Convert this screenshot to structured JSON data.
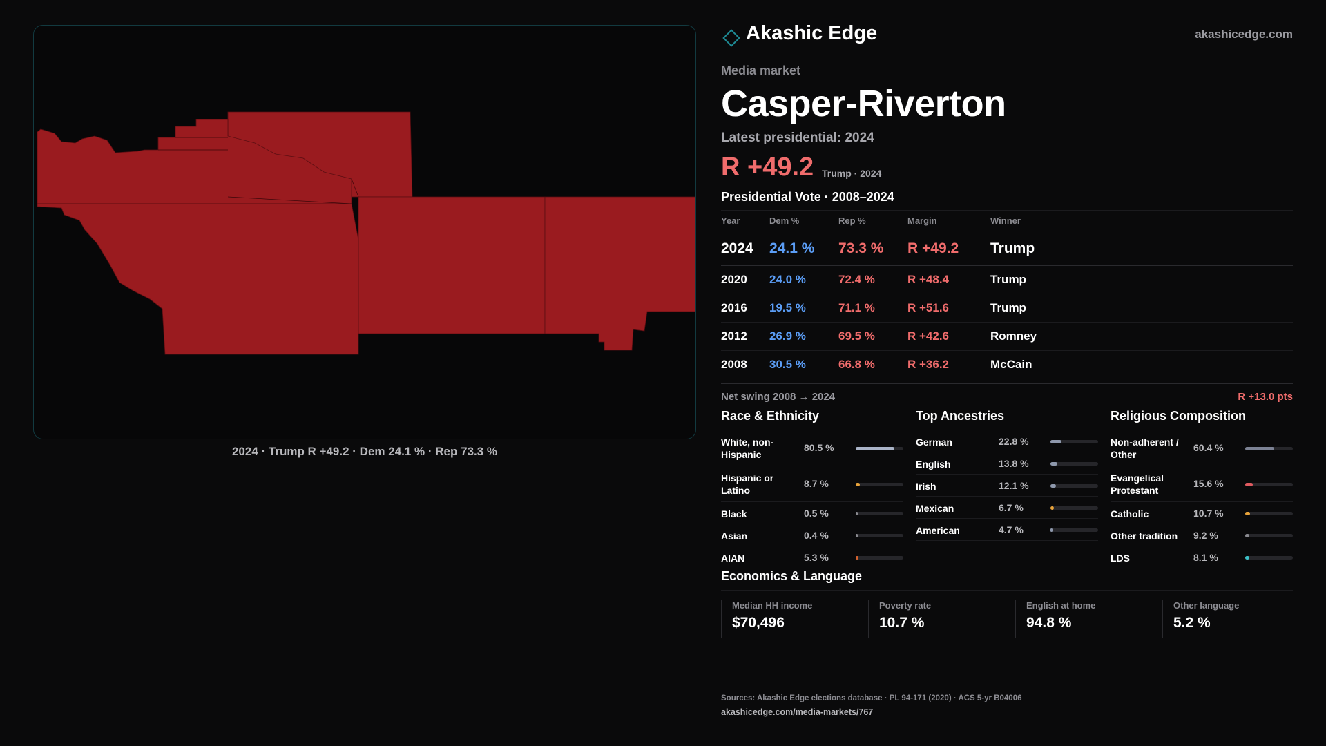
{
  "brand": {
    "name": "Akashic Edge",
    "url": "akashicedge.com"
  },
  "market": {
    "kicker": "Media market",
    "name": "Casper-Riverton",
    "latest_label": "Latest presidential: 2024",
    "margin": "R +49.2",
    "margin_sub": "Trump · 2024"
  },
  "map": {
    "fill_color": "#9a1b1f",
    "border_color": "#123a40",
    "caption": "2024 · Trump R +49.2 · Dem 24.1 % · Rep 73.3 %"
  },
  "presidential": {
    "title": "Presidential Vote · 2008–2024",
    "columns": [
      "Year",
      "Dem %",
      "Rep %",
      "Margin",
      "Winner"
    ],
    "rows": [
      {
        "year": "2024",
        "dem": "24.1 %",
        "rep": "73.3 %",
        "margin": "R +49.2",
        "winner": "Trump"
      },
      {
        "year": "2020",
        "dem": "24.0 %",
        "rep": "72.4 %",
        "margin": "R +48.4",
        "winner": "Trump"
      },
      {
        "year": "2016",
        "dem": "19.5 %",
        "rep": "71.1 %",
        "margin": "R +51.6",
        "winner": "Trump"
      },
      {
        "year": "2012",
        "dem": "26.9 %",
        "rep": "69.5 %",
        "margin": "R +42.6",
        "winner": "Romney"
      },
      {
        "year": "2008",
        "dem": "30.5 %",
        "rep": "66.8 %",
        "margin": "R +36.2",
        "winner": "McCain"
      }
    ],
    "swing_label": "Net swing 2008 → 2024",
    "swing_value": "R +13.0 pts"
  },
  "race": {
    "title": "Race & Ethnicity",
    "rows": [
      {
        "label": "White, non-Hispanic",
        "value": "80.5 %",
        "pct": 80.5,
        "color": "#aab4c8"
      },
      {
        "label": "Hispanic or Latino",
        "value": "8.7 %",
        "pct": 8.7,
        "color": "#e8a33a"
      },
      {
        "label": "Black",
        "value": "0.5 %",
        "pct": 0.5,
        "color": "#8a8a90"
      },
      {
        "label": "Asian",
        "value": "0.4 %",
        "pct": 0.4,
        "color": "#8a8a90"
      },
      {
        "label": "AIAN",
        "value": "5.3 %",
        "pct": 5.3,
        "color": "#d4622e"
      }
    ]
  },
  "ancestry": {
    "title": "Top Ancestries",
    "rows": [
      {
        "label": "German",
        "value": "22.8 %",
        "pct": 22.8,
        "color": "#8e98ac"
      },
      {
        "label": "English",
        "value": "13.8 %",
        "pct": 13.8,
        "color": "#8e98ac"
      },
      {
        "label": "Irish",
        "value": "12.1 %",
        "pct": 12.1,
        "color": "#8e98ac"
      },
      {
        "label": "Mexican",
        "value": "6.7 %",
        "pct": 6.7,
        "color": "#e8a33a"
      },
      {
        "label": "American",
        "value": "4.7 %",
        "pct": 4.7,
        "color": "#8e98ac"
      }
    ]
  },
  "religion": {
    "title": "Religious Composition",
    "rows": [
      {
        "label": "Non-adherent / Other",
        "value": "60.4 %",
        "pct": 60.4,
        "color": "#7c8294"
      },
      {
        "label": "Evangelical Protestant",
        "value": "15.6 %",
        "pct": 15.6,
        "color": "#e05a60"
      },
      {
        "label": "Catholic",
        "value": "10.7 %",
        "pct": 10.7,
        "color": "#e8a33a"
      },
      {
        "label": "Other tradition",
        "value": "9.2 %",
        "pct": 9.2,
        "color": "#8a8a90"
      },
      {
        "label": "LDS",
        "value": "8.1 %",
        "pct": 8.1,
        "color": "#3cc1c8"
      }
    ]
  },
  "economics": {
    "title": "Economics & Language",
    "cells": [
      {
        "label": "Median HH income",
        "value": "$70,496"
      },
      {
        "label": "Poverty rate",
        "value": "10.7 %"
      },
      {
        "label": "English at home",
        "value": "94.8 %"
      },
      {
        "label": "Other language",
        "value": "5.2 %"
      }
    ]
  },
  "footer": {
    "sources": "Sources: Akashic Edge elections database · PL 94-171 (2020) · ACS 5-yr B04006",
    "link": "akashicedge.com/media-markets/767"
  }
}
